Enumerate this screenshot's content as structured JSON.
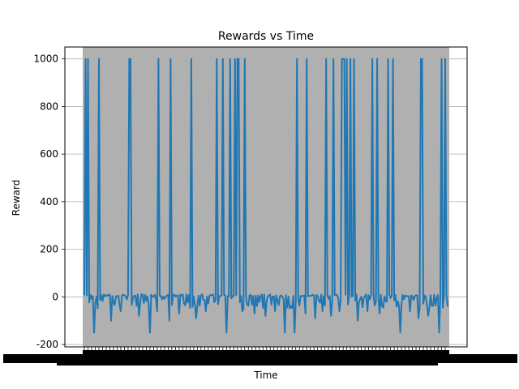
{
  "chart_data": {
    "type": "line",
    "title": "Rewards vs Time",
    "xlabel": "Time",
    "ylabel": "Reward",
    "ylim": [
      -210,
      1050
    ],
    "yticks": [
      -200,
      0,
      200,
      400,
      600,
      800,
      1000
    ],
    "grid": "horizontal",
    "series_color": "#1f77b4",
    "band_color": "#b0b0b0",
    "baseline_value": 5,
    "x_count": 300,
    "spikes_to_1000": [
      1,
      3,
      12,
      37,
      38,
      61,
      71,
      88,
      109,
      114,
      120,
      124,
      126,
      127,
      132,
      175,
      183,
      199,
      205,
      212,
      213,
      214,
      216,
      219,
      222,
      237,
      241,
      250,
      254,
      277,
      278,
      294,
      297
    ],
    "dips": [
      {
        "x": 8,
        "y": -150
      },
      {
        "x": 22,
        "y": -100
      },
      {
        "x": 30,
        "y": -60
      },
      {
        "x": 45,
        "y": -80
      },
      {
        "x": 54,
        "y": -150
      },
      {
        "x": 60,
        "y": -60
      },
      {
        "x": 70,
        "y": -100
      },
      {
        "x": 78,
        "y": -70
      },
      {
        "x": 92,
        "y": -90
      },
      {
        "x": 100,
        "y": -60
      },
      {
        "x": 117,
        "y": -150
      },
      {
        "x": 130,
        "y": -60
      },
      {
        "x": 140,
        "y": -70
      },
      {
        "x": 149,
        "y": -80
      },
      {
        "x": 157,
        "y": -60
      },
      {
        "x": 165,
        "y": -150
      },
      {
        "x": 173,
        "y": -150
      },
      {
        "x": 182,
        "y": -70
      },
      {
        "x": 190,
        "y": -90
      },
      {
        "x": 196,
        "y": -60
      },
      {
        "x": 203,
        "y": -80
      },
      {
        "x": 210,
        "y": -60
      },
      {
        "x": 225,
        "y": -100
      },
      {
        "x": 233,
        "y": -60
      },
      {
        "x": 243,
        "y": -70
      },
      {
        "x": 260,
        "y": -150
      },
      {
        "x": 268,
        "y": -60
      },
      {
        "x": 275,
        "y": -90
      },
      {
        "x": 283,
        "y": -80
      },
      {
        "x": 292,
        "y": -150
      }
    ]
  }
}
